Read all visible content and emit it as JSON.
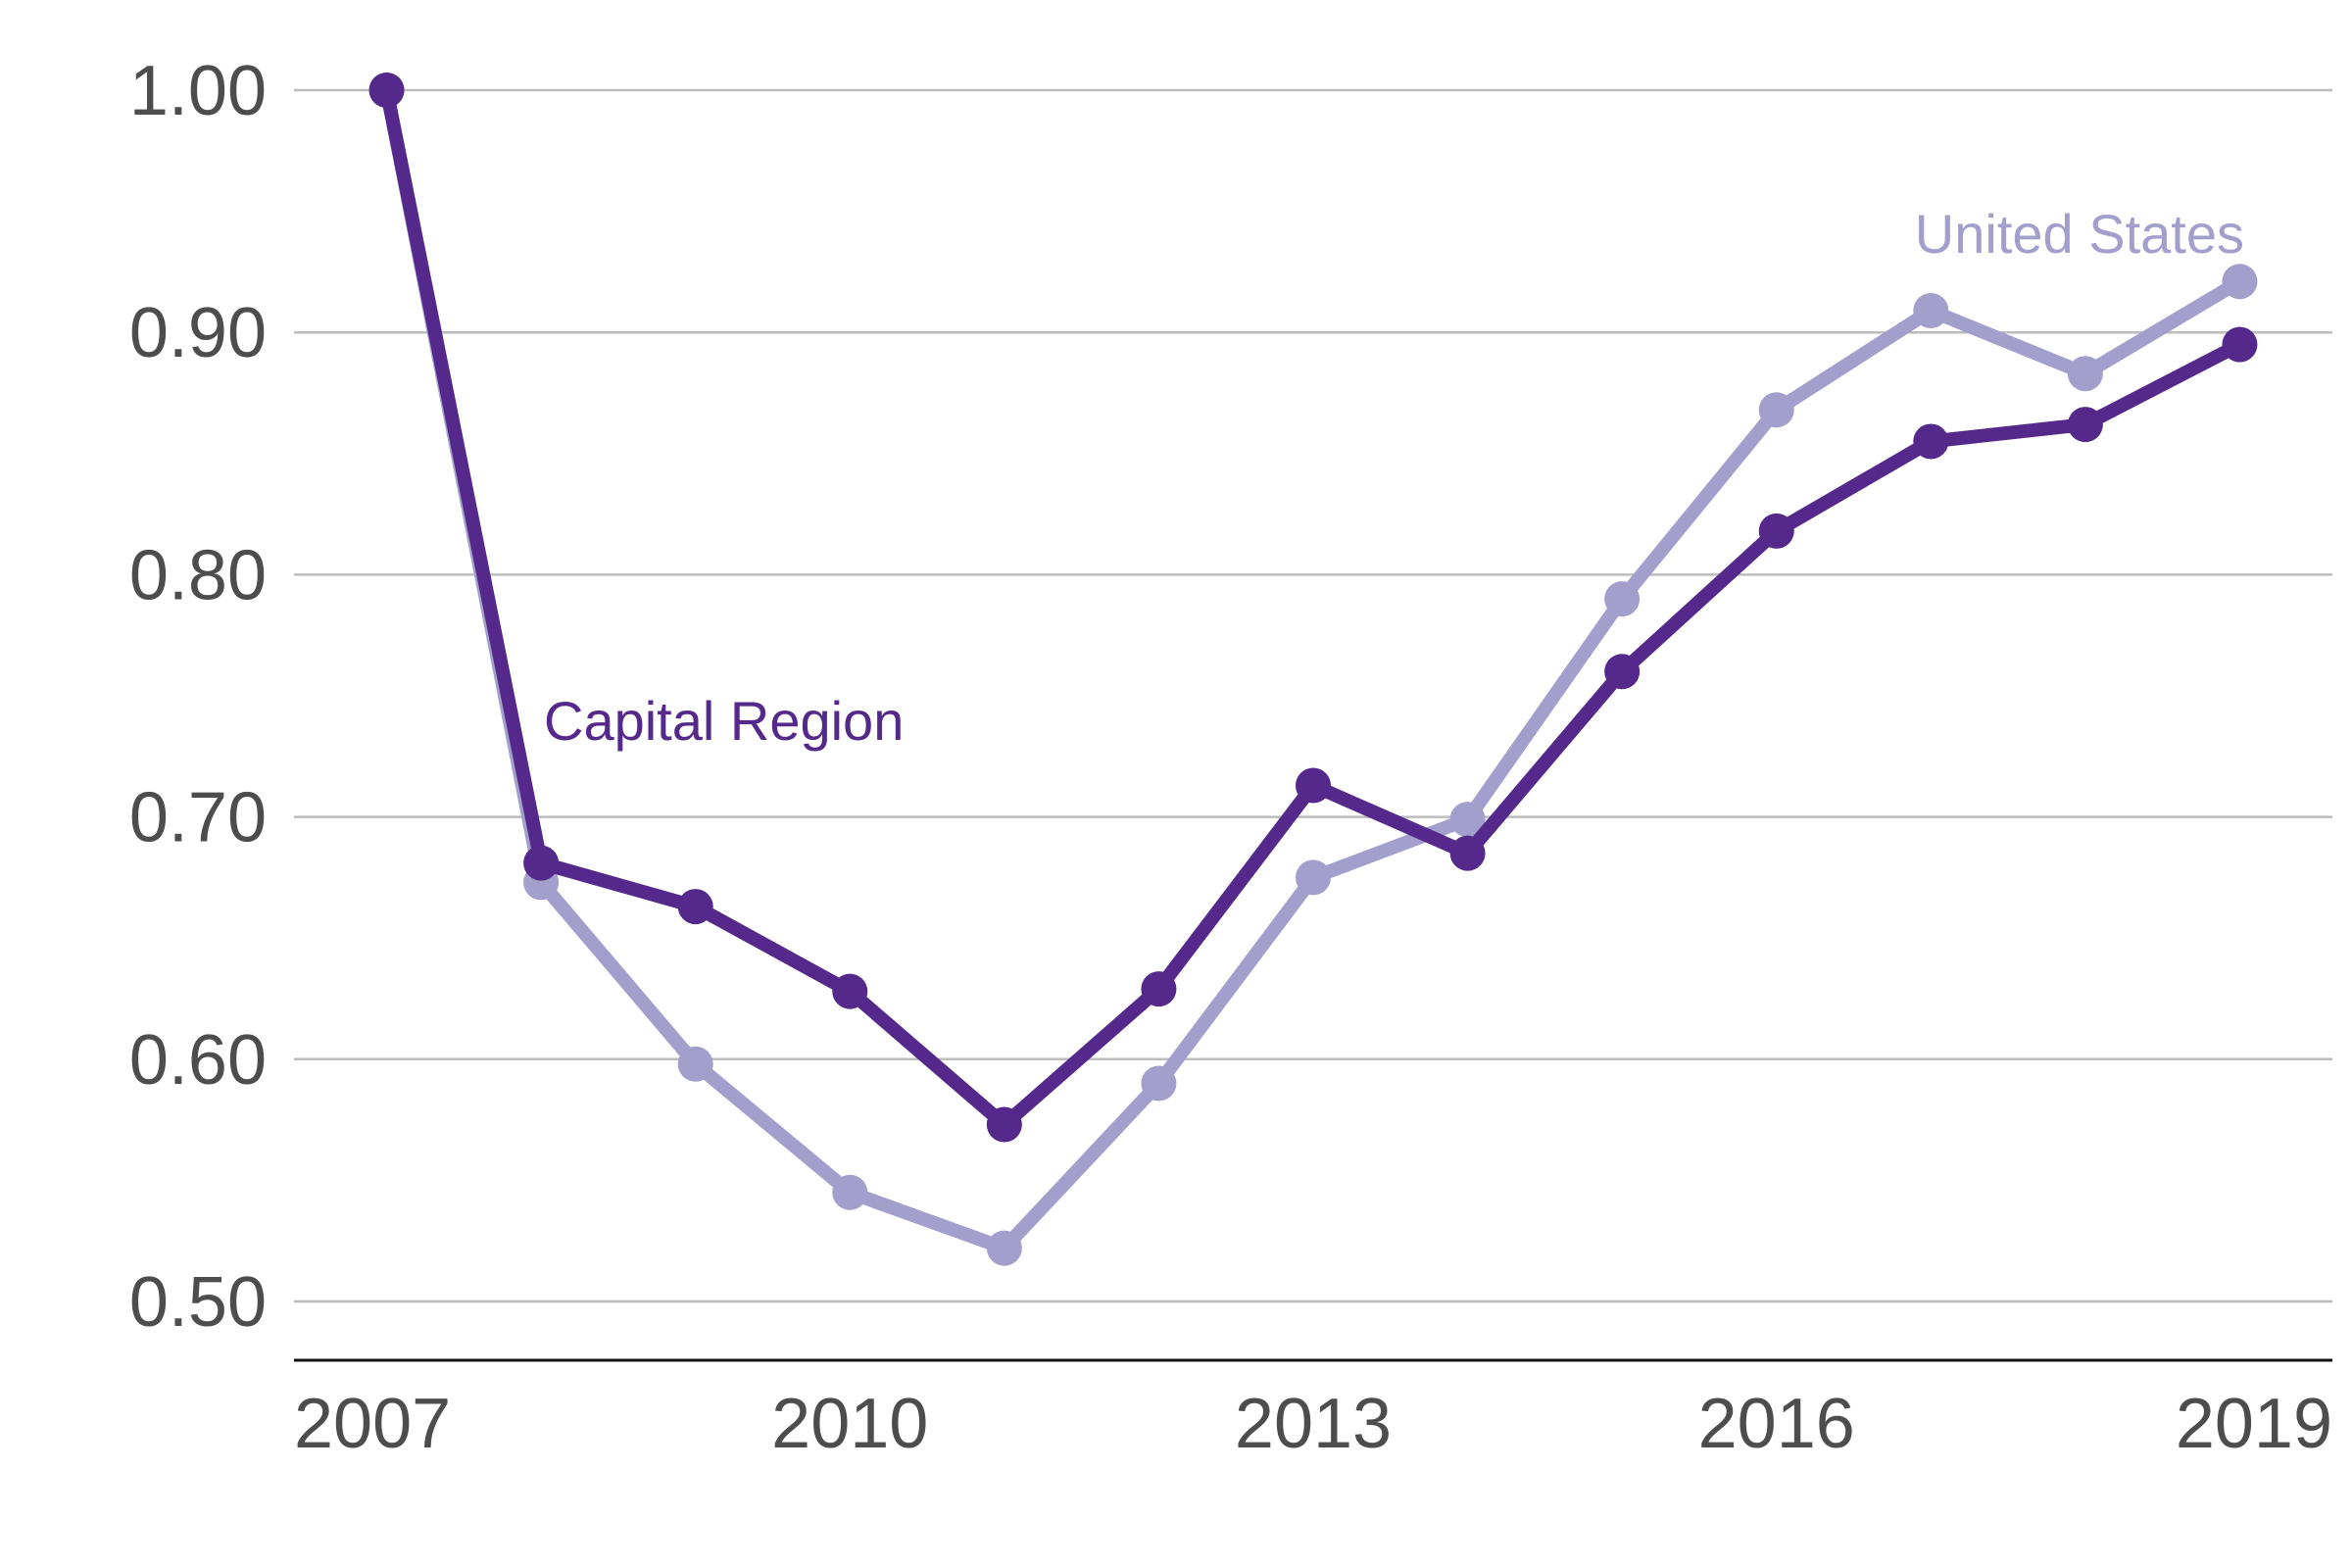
{
  "chart_data": {
    "type": "line",
    "title": "",
    "xlabel": "",
    "ylabel": "",
    "x": [
      2007,
      2008,
      2009,
      2010,
      2011,
      2012,
      2013,
      2014,
      2015,
      2016,
      2017,
      2018,
      2019
    ],
    "x_tick_labels": [
      "2007",
      "2010",
      "2013",
      "2016",
      "2019"
    ],
    "y_tick_labels": [
      "1.00",
      "0.90",
      "0.80",
      "0.70",
      "0.60",
      "0.50"
    ],
    "y_ticks": [
      1.0,
      0.9,
      0.8,
      0.7,
      0.6,
      0.5
    ],
    "xlim": [
      2006.4,
      2019.6
    ],
    "ylim": [
      0.475,
      1.0
    ],
    "grid": true,
    "legend": "inline labels",
    "series": [
      {
        "name": "United States",
        "color": "#a39fcc",
        "values": [
          1.0,
          0.673,
          0.598,
          0.545,
          0.522,
          0.59,
          0.675,
          0.699,
          0.79,
          0.868,
          0.909,
          0.883,
          0.921
        ]
      },
      {
        "name": "Capital Region",
        "color": "#55288b",
        "values": [
          1.0,
          0.681,
          0.663,
          0.628,
          0.573,
          0.629,
          0.713,
          0.685,
          0.76,
          0.818,
          0.855,
          0.862,
          0.895
        ]
      }
    ]
  }
}
